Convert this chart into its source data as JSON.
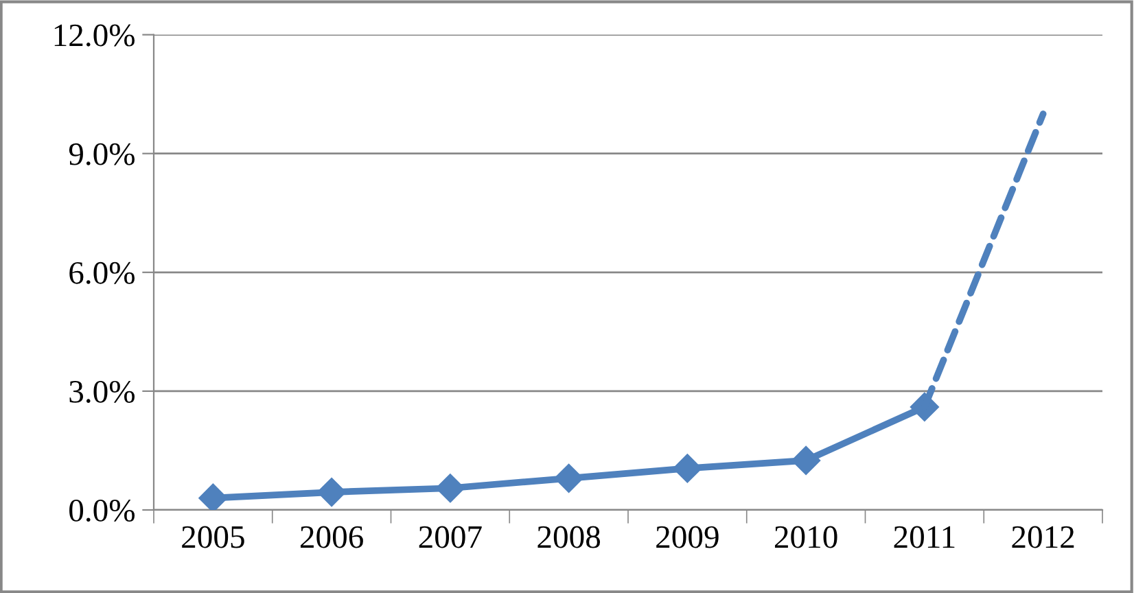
{
  "chart_data": {
    "type": "line",
    "categories": [
      "2005",
      "2006",
      "2007",
      "2008",
      "2009",
      "2010",
      "2011",
      "2012"
    ],
    "series": [
      {
        "color": "#4f81bd",
        "marker": "diamond",
        "line_style": "solid",
        "values": [
          0.3,
          0.45,
          0.55,
          0.8,
          1.05,
          1.25,
          2.6,
          null
        ]
      },
      {
        "color": "#4f81bd",
        "line_style": "dashed",
        "values": [
          null,
          null,
          null,
          null,
          null,
          null,
          2.6,
          10.0
        ]
      }
    ],
    "ylim": [
      0,
      12
    ],
    "yticks": [
      {
        "value": 0,
        "label": "0.0%"
      },
      {
        "value": 3,
        "label": "3.0%"
      },
      {
        "value": 6,
        "label": "6.0%"
      },
      {
        "value": 9,
        "label": "9.0%"
      },
      {
        "value": 12,
        "label": "12.0%"
      }
    ],
    "grid": "y"
  }
}
